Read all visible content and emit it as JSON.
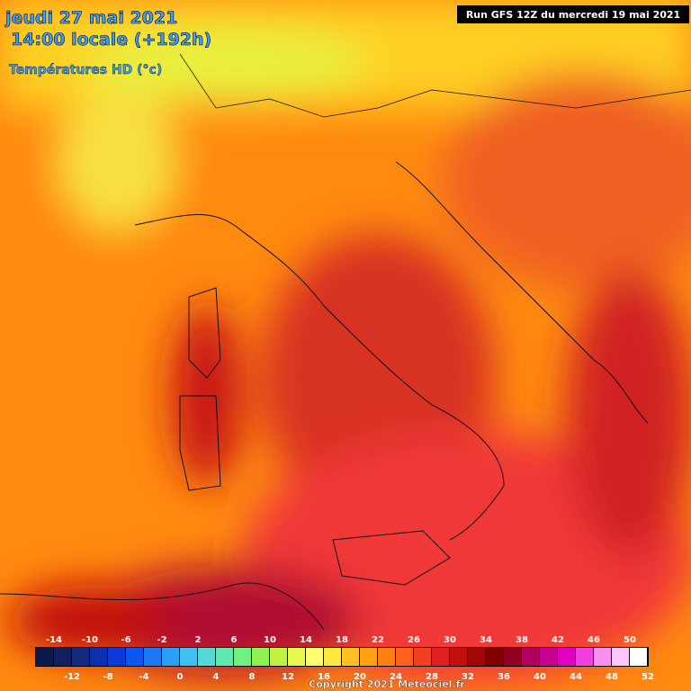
{
  "header": {
    "date_line": "jeudi 27 mai 2021",
    "time_line": "14:00 locale (+192h)",
    "variable": "Températures HD (°c)"
  },
  "run_info": "Run GFS 12Z du mercredi 19 mai 2021",
  "legend": {
    "labels_top": [
      -14,
      -10,
      -6,
      -2,
      2,
      6,
      10,
      14,
      18,
      22,
      26,
      30,
      34,
      38,
      42,
      46,
      50
    ],
    "labels_bottom": [
      -12,
      -8,
      -4,
      0,
      4,
      8,
      12,
      16,
      20,
      24,
      28,
      32,
      36,
      40,
      44,
      48,
      52
    ],
    "colors": [
      "#0b1a4a",
      "#10205e",
      "#142a80",
      "#0c2fb0",
      "#0a3ad8",
      "#0b55f0",
      "#1a78f5",
      "#2aa0f5",
      "#40c0f0",
      "#55d8d8",
      "#60e8b0",
      "#70f080",
      "#90f050",
      "#c0f040",
      "#e8f850",
      "#ffff70",
      "#ffe840",
      "#ffc020",
      "#ffa010",
      "#ff8010",
      "#ff6020",
      "#f04020",
      "#e02020",
      "#c01010",
      "#a00808",
      "#800000",
      "#900020",
      "#b00060",
      "#c80090",
      "#e000c0",
      "#f040e0",
      "#f890f0",
      "#fcc8fa",
      "#ffffff"
    ]
  },
  "copyright": "Copyright 2021 Meteociel.fr"
}
